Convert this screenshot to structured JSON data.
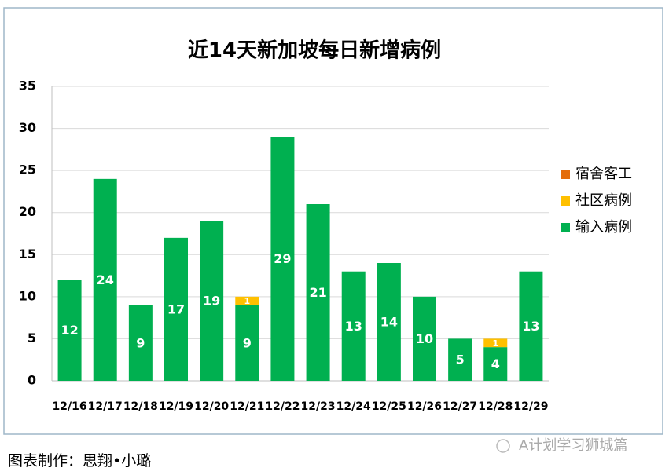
{
  "chart_data": {
    "type": "stacked_bar",
    "title": "近14天新加坡每日新增病例",
    "categories": [
      "12/16",
      "12/17",
      "12/18",
      "12/19",
      "12/20",
      "12/21",
      "12/22",
      "12/23",
      "12/24",
      "12/25",
      "12/26",
      "12/27",
      "12/28",
      "12/29"
    ],
    "series": [
      {
        "name": "输入病例",
        "color": "#00b050",
        "values": [
          12,
          24,
          9,
          17,
          19,
          9,
          29,
          21,
          13,
          14,
          10,
          5,
          4,
          13
        ]
      },
      {
        "name": "社区病例",
        "color": "#ffc000",
        "values": [
          0,
          0,
          0,
          0,
          0,
          1,
          0,
          0,
          0,
          0,
          0,
          0,
          1,
          0
        ]
      },
      {
        "name": "宿舍客工",
        "color": "#e46c0a",
        "values": [
          0,
          0,
          0,
          0,
          0,
          0,
          0,
          0,
          0,
          0,
          0,
          0,
          0,
          0
        ]
      }
    ],
    "ylim": [
      0,
      35
    ],
    "yticks": [
      0,
      5,
      10,
      15,
      20,
      25,
      30,
      35
    ],
    "grid": true,
    "legend": "right"
  },
  "caption": "图表制作：思翔•小璐",
  "watermark": "A计划学习狮城篇"
}
